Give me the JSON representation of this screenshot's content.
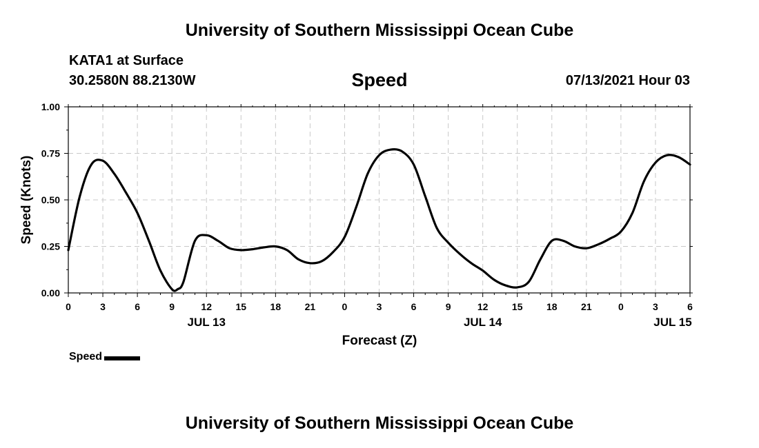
{
  "header": {
    "title": "University of Southern Mississippi Ocean Cube",
    "station": "KATA1 at Surface",
    "coordinates": "30.2580N  88.2130W",
    "variable": "Speed",
    "datetime": "07/13/2021 Hour 03"
  },
  "footer": {
    "title": "University of Southern Mississippi Ocean Cube"
  },
  "legend": {
    "label": "Speed"
  },
  "colors": {
    "line": "#000000",
    "grid": "#c8c8c8"
  },
  "chart_data": {
    "type": "line",
    "title": "Speed",
    "xlabel": "Forecast (Z)",
    "ylabel": "Speed (Knots)",
    "xlim": [
      0,
      54
    ],
    "ylim": [
      0,
      1
    ],
    "grid": true,
    "legend_position": "bottom-left",
    "x_ticks": [
      {
        "hour": 0,
        "label": "0"
      },
      {
        "hour": 3,
        "label": "3"
      },
      {
        "hour": 6,
        "label": "6"
      },
      {
        "hour": 9,
        "label": "9"
      },
      {
        "hour": 12,
        "label": "12"
      },
      {
        "hour": 15,
        "label": "15"
      },
      {
        "hour": 18,
        "label": "18"
      },
      {
        "hour": 21,
        "label": "21"
      },
      {
        "hour": 24,
        "label": "0"
      },
      {
        "hour": 27,
        "label": "3"
      },
      {
        "hour": 30,
        "label": "6"
      },
      {
        "hour": 33,
        "label": "9"
      },
      {
        "hour": 36,
        "label": "12"
      },
      {
        "hour": 39,
        "label": "15"
      },
      {
        "hour": 42,
        "label": "18"
      },
      {
        "hour": 45,
        "label": "21"
      },
      {
        "hour": 48,
        "label": "0"
      },
      {
        "hour": 51,
        "label": "3"
      },
      {
        "hour": 54,
        "label": "6"
      }
    ],
    "date_labels": [
      {
        "hour": 12,
        "label": "JUL 13"
      },
      {
        "hour": 36,
        "label": "JUL 14"
      },
      {
        "hour": 52.5,
        "label": "JUL 15"
      }
    ],
    "y_ticks": [
      {
        "value": 0,
        "label": "0.00"
      },
      {
        "value": 0.25,
        "label": "0.25"
      },
      {
        "value": 0.5,
        "label": "0.50"
      },
      {
        "value": 0.75,
        "label": "0.75"
      },
      {
        "value": 1,
        "label": "1.00"
      }
    ],
    "series": [
      {
        "name": "Speed",
        "x": [
          0,
          1,
          2,
          3,
          4,
          5,
          6,
          7,
          8,
          9,
          9.5,
          10,
          11,
          12,
          13,
          14,
          15,
          16,
          17,
          18,
          19,
          20,
          21,
          22,
          23,
          24,
          25,
          26,
          27,
          28,
          29,
          30,
          31,
          32,
          33,
          34,
          35,
          36,
          37,
          38,
          39,
          40,
          41,
          42,
          43,
          44,
          45,
          46,
          47,
          48,
          49,
          50,
          51,
          52,
          53,
          54
        ],
        "y": [
          0.23,
          0.52,
          0.69,
          0.71,
          0.64,
          0.54,
          0.43,
          0.28,
          0.12,
          0.02,
          0.02,
          0.06,
          0.28,
          0.31,
          0.28,
          0.24,
          0.23,
          0.235,
          0.245,
          0.25,
          0.23,
          0.18,
          0.16,
          0.17,
          0.22,
          0.3,
          0.46,
          0.64,
          0.74,
          0.77,
          0.76,
          0.69,
          0.52,
          0.35,
          0.27,
          0.21,
          0.16,
          0.12,
          0.07,
          0.04,
          0.03,
          0.06,
          0.18,
          0.28,
          0.28,
          0.25,
          0.24,
          0.26,
          0.29,
          0.33,
          0.43,
          0.6,
          0.7,
          0.74,
          0.73,
          0.69
        ]
      }
    ]
  }
}
